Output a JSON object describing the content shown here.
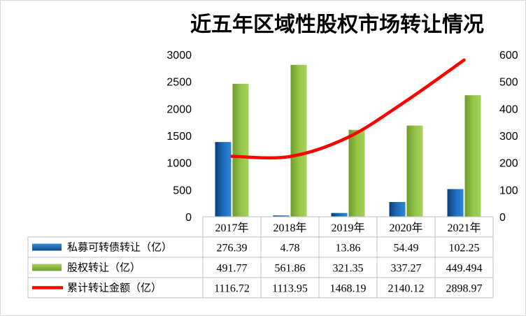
{
  "chart_data": {
    "type": "bar",
    "title": "近五年区域性股权市场转让情况",
    "categories": [
      "2017年",
      "2018年",
      "2019年",
      "2020年",
      "2021年"
    ],
    "y_left": {
      "min": 0,
      "max": 3000,
      "ticks": [
        "0",
        "500",
        "1000",
        "1500",
        "2000",
        "2500",
        "3000"
      ]
    },
    "y_right": {
      "min": 0,
      "max": 600,
      "ticks": [
        "0",
        "100",
        "200",
        "300",
        "400",
        "500",
        "600"
      ]
    },
    "series": [
      {
        "name": "私募可转债转让（亿）",
        "kind": "bar",
        "axis": "right",
        "color": "#1f6fb8",
        "values": [
          276.39,
          4.78,
          13.86,
          54.49,
          102.25
        ],
        "labels": [
          "276.39",
          "4.78",
          "13.86",
          "54.49",
          "102.25"
        ]
      },
      {
        "name": "股权转让（亿）",
        "kind": "bar",
        "axis": "right",
        "color": "#8dbd3f",
        "values": [
          491.77,
          561.86,
          321.35,
          337.27,
          449.494
        ],
        "labels": [
          "491.77",
          "561.86",
          "321.35",
          "337.27",
          "449.494"
        ]
      },
      {
        "name": "累计转让金额（亿）",
        "kind": "line",
        "axis": "left",
        "color": "#ff0000",
        "values": [
          1116.72,
          1113.95,
          1468.19,
          2140.12,
          2898.97
        ],
        "labels": [
          "1116.72",
          "1113.95",
          "1468.19",
          "2140.12",
          "2898.97"
        ]
      }
    ],
    "gridlines": false,
    "legend": "bottom data table"
  }
}
